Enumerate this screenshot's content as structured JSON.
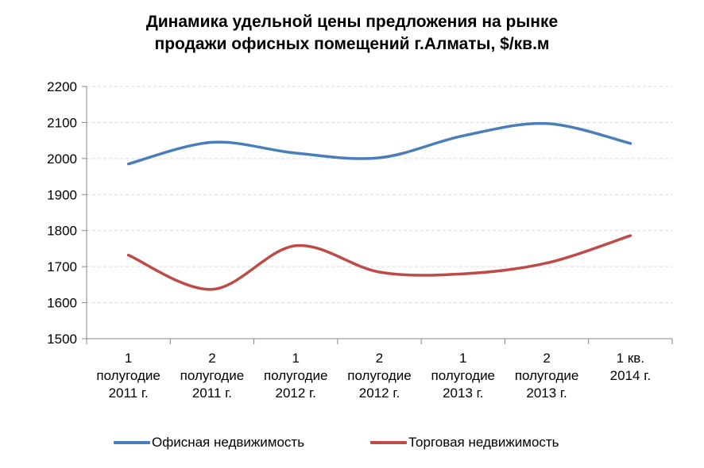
{
  "chart_data": {
    "type": "line",
    "title_lines": [
      "Динамика удельной цены предложения на рынке",
      "продажи офисных помещений г.Алматы, $/кв.м"
    ],
    "categories": [
      [
        "1",
        "полугодие",
        "2011 г."
      ],
      [
        "2",
        "полугодие",
        "2011 г."
      ],
      [
        "1",
        "полугодие",
        "2012 г."
      ],
      [
        "2",
        "полугодие",
        "2012 г."
      ],
      [
        "1",
        "полугодие",
        "2013 г."
      ],
      [
        "2",
        "полугодие",
        "2013 г."
      ],
      [
        "1 кв.",
        "2014 г."
      ]
    ],
    "y_ticks": [
      "1500",
      "1600",
      "1700",
      "1800",
      "1900",
      "2000",
      "2100",
      "2200"
    ],
    "ylim": [
      1500,
      2200
    ],
    "grid": true,
    "smooth": true,
    "legend_position": "bottom",
    "series": [
      {
        "name": "Офисная недвижимость",
        "color": "#4a7ebb",
        "values": [
          1985,
          2045,
          2015,
          2002,
          2063,
          2097,
          2042
        ]
      },
      {
        "name": "Торговая недвижимость",
        "color": "#be4b48",
        "values": [
          1732,
          1637,
          1758,
          1685,
          1680,
          1710,
          1786
        ]
      }
    ]
  }
}
